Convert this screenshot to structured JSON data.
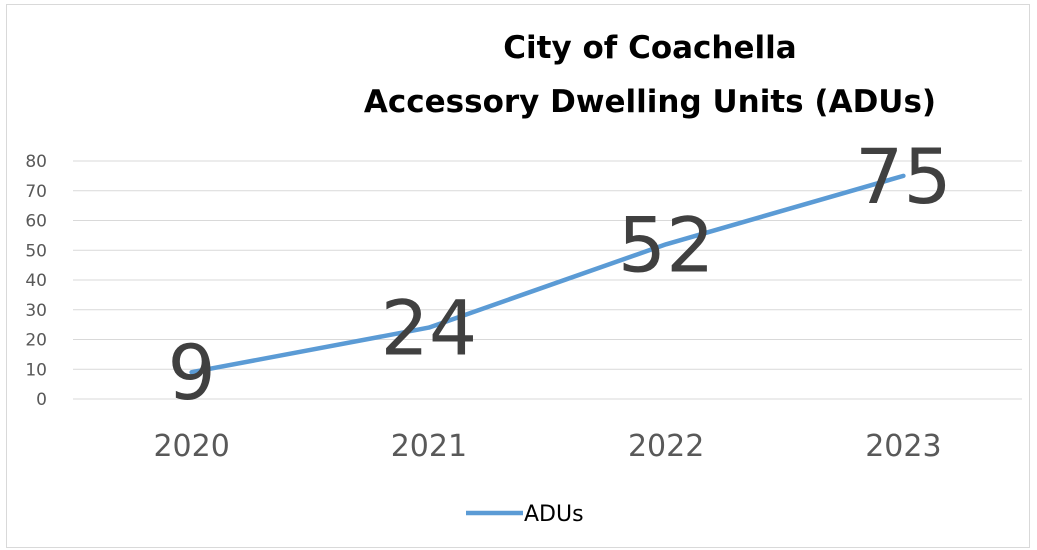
{
  "chart_data": {
    "type": "line",
    "title_lines": [
      "City of Coachella",
      "Accessory Dwelling Units (ADUs)"
    ],
    "categories": [
      "2020",
      "2021",
      "2022",
      "2023"
    ],
    "series": [
      {
        "name": "ADUs",
        "values": [
          9,
          24,
          52,
          75
        ],
        "color": "#5b9bd5"
      }
    ],
    "data_labels": [
      "9",
      "24",
      "52",
      "75"
    ],
    "yticks": [
      "0",
      "10",
      "20",
      "30",
      "40",
      "50",
      "60",
      "70",
      "80"
    ],
    "ylim": [
      0,
      80
    ],
    "grid": true,
    "legend_position": "bottom",
    "gridline_color": "#d9d9d9",
    "axis_color": "#d9d9d9"
  }
}
